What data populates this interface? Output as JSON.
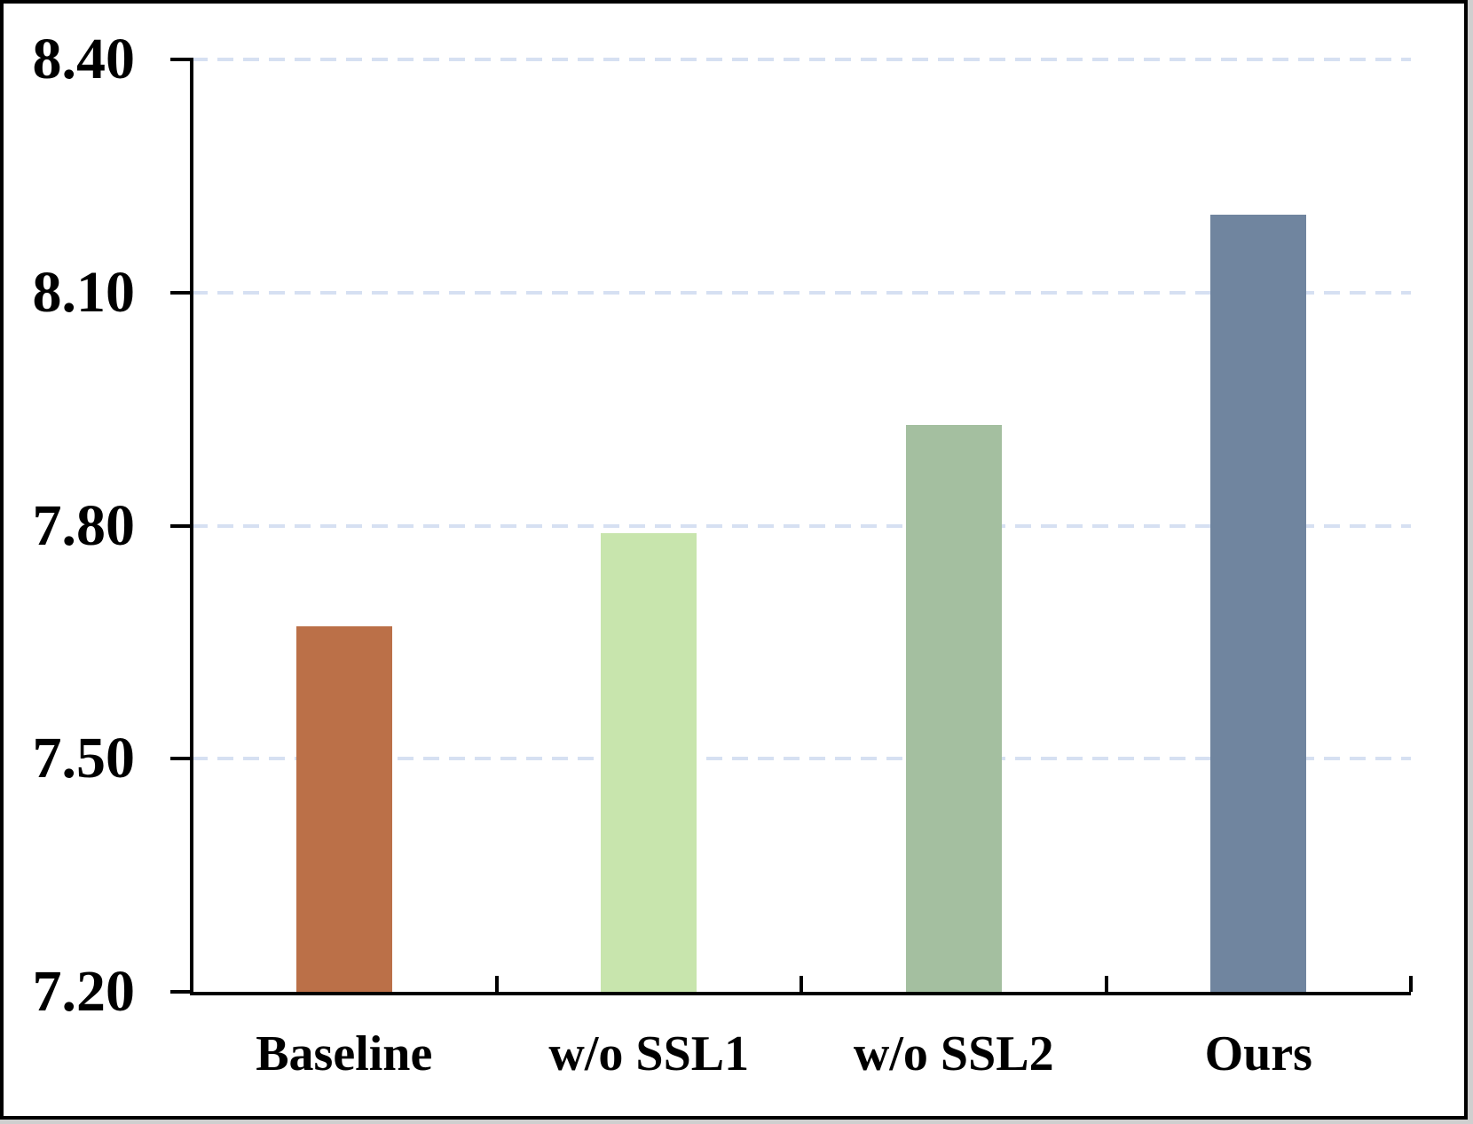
{
  "figure": {
    "background_color": "#ffffff",
    "frame_color": "#000000",
    "outer_edge_color": "#cfcfcf"
  },
  "chart_data": {
    "type": "bar",
    "title": "",
    "xlabel": "",
    "ylabel": "",
    "categories": [
      "Baseline",
      "w/o SSL1",
      "w/o SSL2",
      "Ours"
    ],
    "values": [
      7.67,
      7.79,
      7.93,
      8.2
    ],
    "bar_colors": [
      "#BB7048",
      "#C8E5AD",
      "#A4BFA0",
      "#70859F"
    ],
    "ylim": [
      7.2,
      8.4
    ],
    "ytick_values": [
      8.4,
      8.1,
      7.8,
      7.5,
      7.2
    ],
    "ytick_labels": [
      "8.40",
      "8.10",
      "7.80",
      "7.50",
      "7.20"
    ],
    "grid": "horizontal-dashed",
    "gridline_color": "#D6E0F2",
    "axis_color": "#000000",
    "tick_style": {
      "y_ticks": "outside-left",
      "x_ticks": "inside-up"
    },
    "legend": "none"
  }
}
